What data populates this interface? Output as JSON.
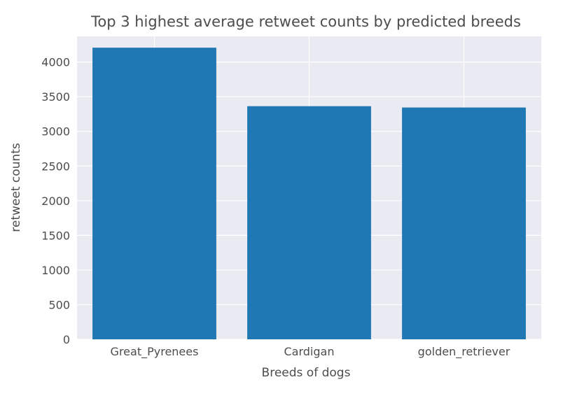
{
  "chart_data": {
    "type": "bar",
    "title": "Top 3 highest average retweet counts by predicted breeds",
    "xlabel": "Breeds of dogs",
    "ylabel": "retweet counts",
    "categories": [
      "Great_Pyrenees",
      "Cardigan",
      "golden_retriever"
    ],
    "values": [
      4207,
      3363,
      3344
    ],
    "ylim": [
      0,
      4370
    ],
    "yticks": [
      0,
      500,
      1000,
      1500,
      2000,
      2500,
      3000,
      3500,
      4000
    ],
    "grid": true,
    "bar_color": "#1f77b4",
    "plot_background": "#eaeaf2"
  }
}
